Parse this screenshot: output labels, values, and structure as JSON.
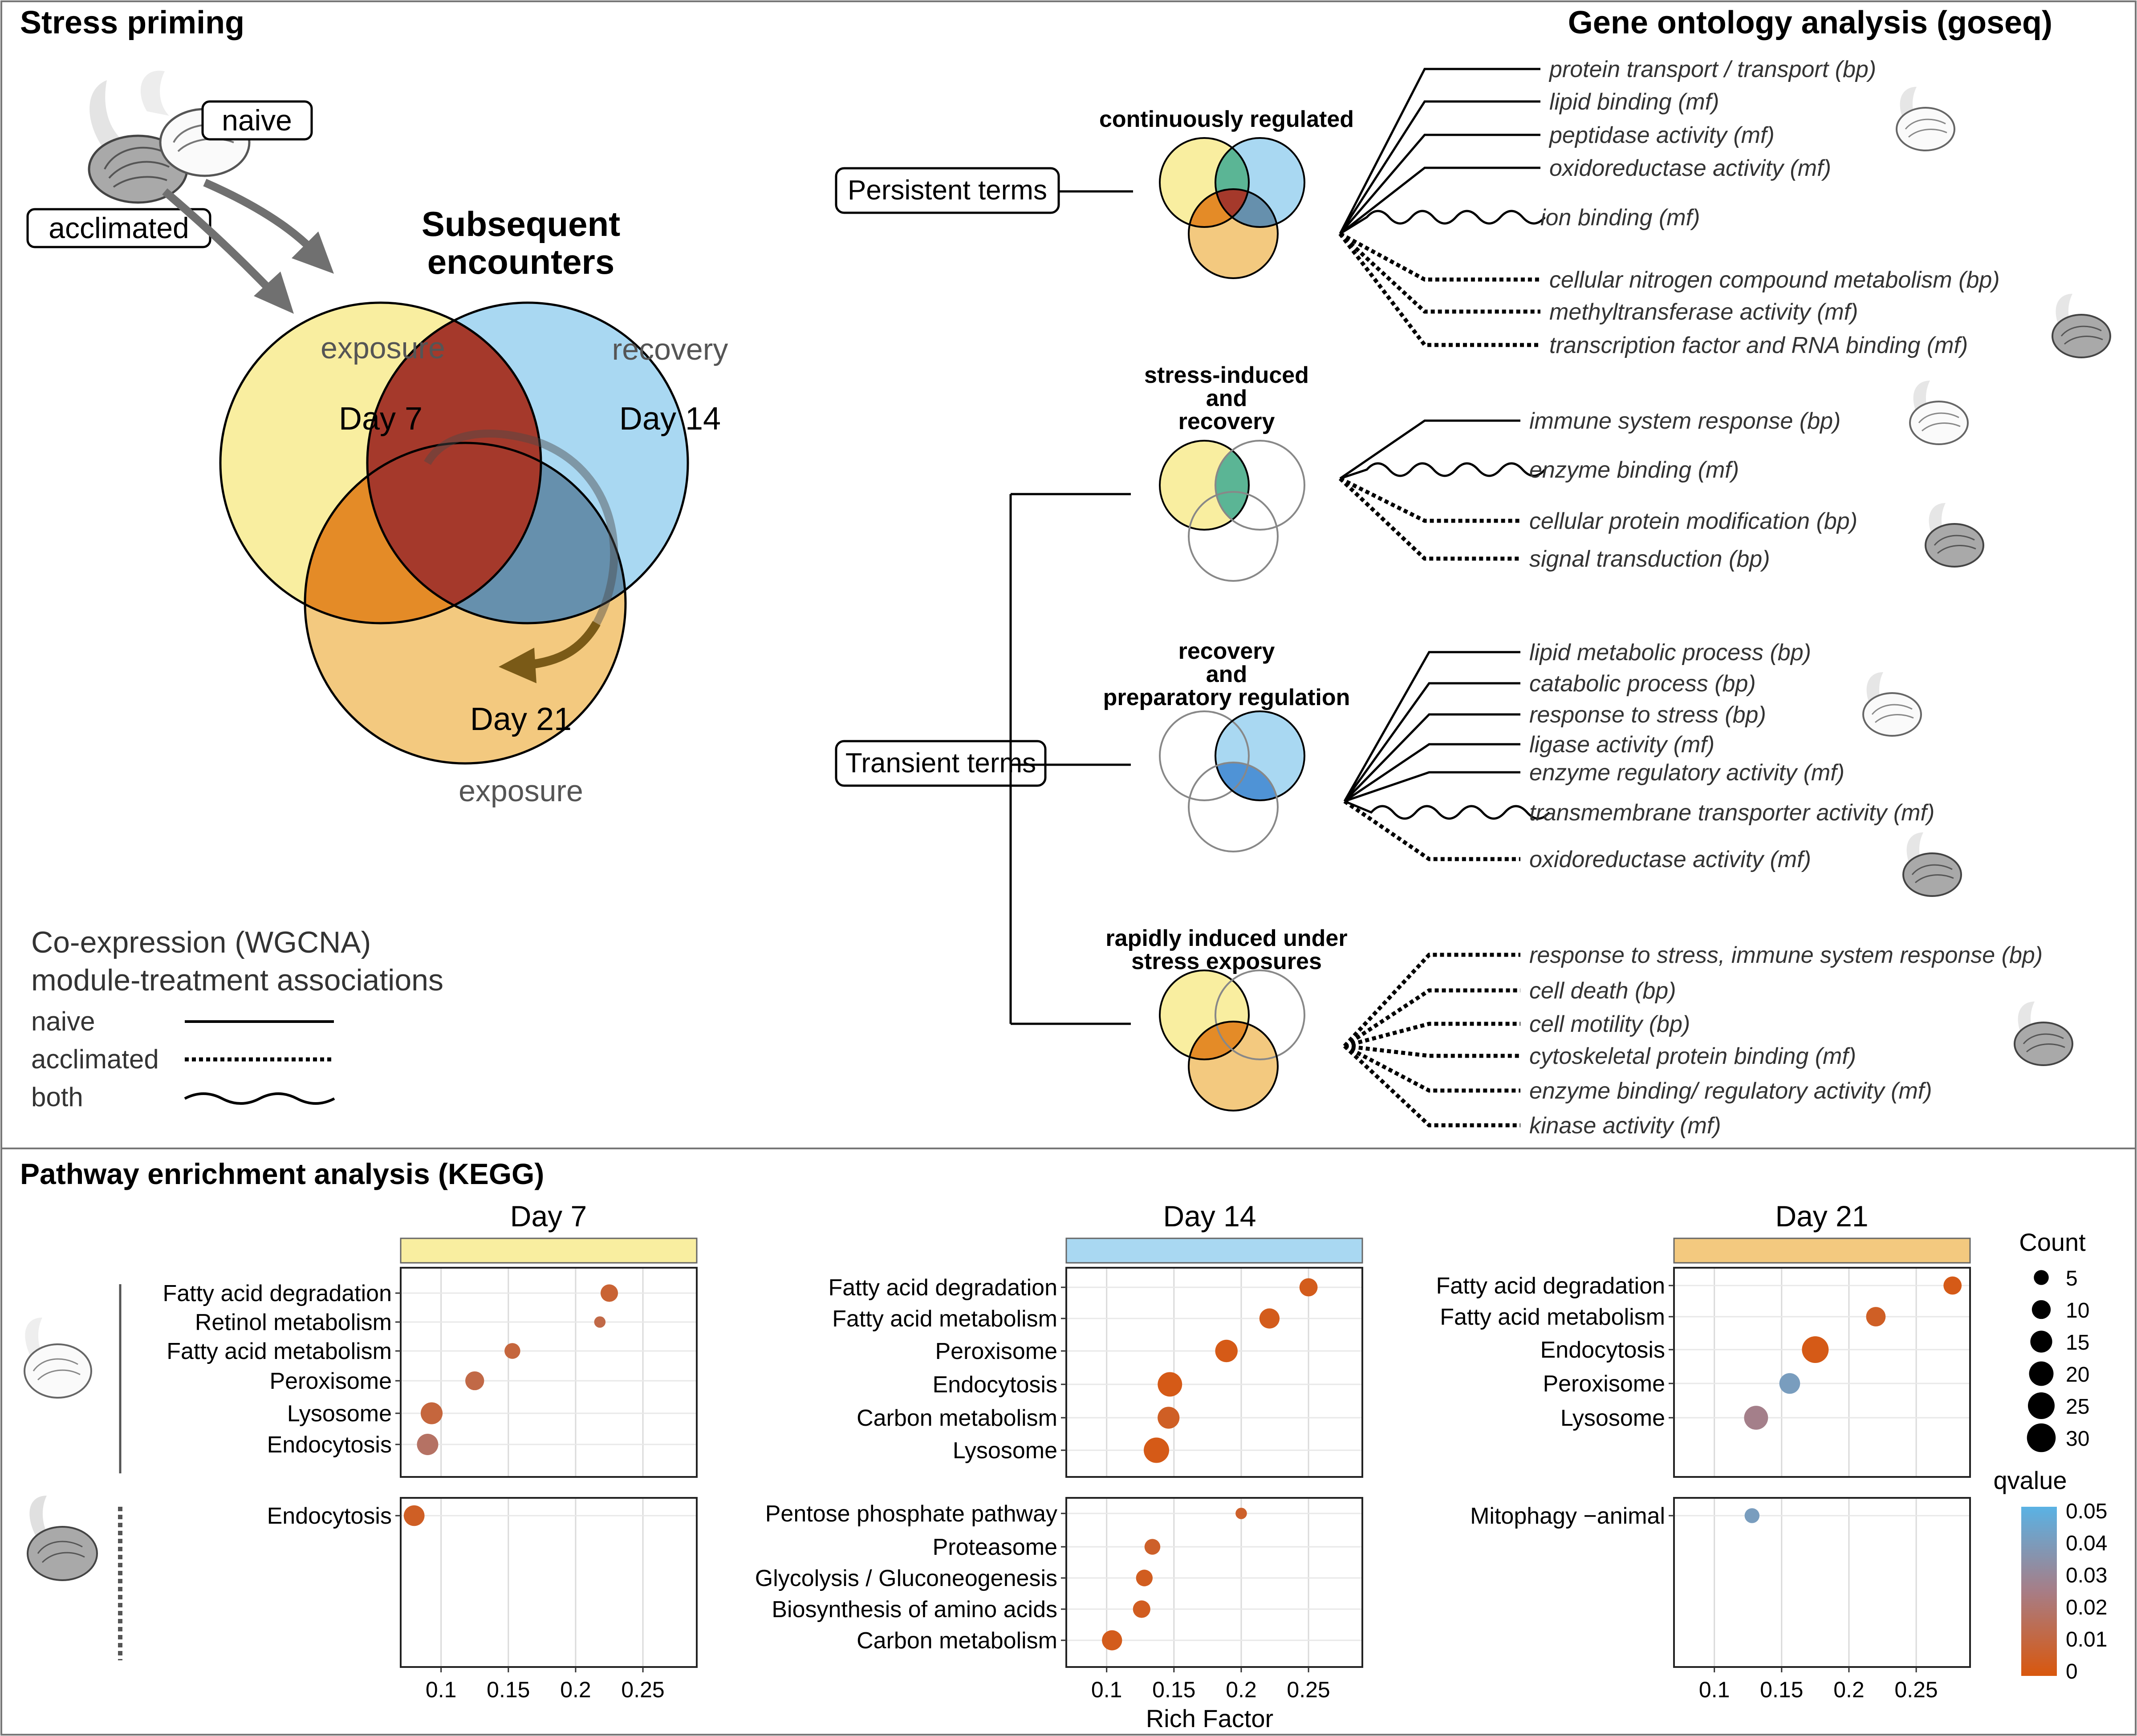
{
  "stress_priming": {
    "title": "Stress priming",
    "naive_label": "naive",
    "acclimated_label": "acclimated",
    "subsequent_line1": "Subsequent",
    "subsequent_line2": "encounters",
    "circles": [
      {
        "top_label": "exposure",
        "day": "Day 7",
        "color": "#f9eea0"
      },
      {
        "top_label": "recovery",
        "day": "Day 14",
        "color": "#a9d8f2"
      },
      {
        "top_label": "exposure",
        "day": "Day 21",
        "color": "#f3c97f"
      }
    ]
  },
  "legend_wgcna": {
    "title_line1": "Co-expression (WGCNA)",
    "title_line2": "module-treatment associations",
    "items": [
      "naive",
      "acclimated",
      "both"
    ]
  },
  "gene_ontology": {
    "title": "Gene ontology analysis (goseq)",
    "persistent_label": "Persistent terms",
    "transient_label": "Transient terms",
    "groups": [
      {
        "heading": [
          "continuously regulated"
        ],
        "terms": [
          "protein transport / transport (bp)",
          "lipid binding (mf)",
          "peptidase activity (mf)",
          "oxidoreductase activity (mf)",
          "ion binding (mf)",
          "cellular nitrogen compound metabolism (bp)",
          "methyltransferase activity (mf)",
          "transcription factor and RNA binding (mf)"
        ]
      },
      {
        "heading": [
          "stress-induced",
          "and",
          "recovery"
        ],
        "terms": [
          "immune system response (bp)",
          "enzyme binding (mf)",
          "cellular protein modification (bp)",
          "signal transduction (bp)"
        ]
      },
      {
        "heading": [
          "recovery",
          "and",
          "preparatory regulation"
        ],
        "terms": [
          "lipid metabolic process (bp)",
          "catabolic process (bp)",
          "response to stress (bp)",
          "ligase activity (mf)",
          "enzyme regulatory activity (mf)",
          "transmembrane transporter activity (mf)",
          "oxidoreductase activity (mf)"
        ]
      },
      {
        "heading": [
          "rapidly induced under",
          "stress exposures"
        ],
        "terms": [
          "response to stress, immune system response (bp)",
          "cell death (bp)",
          "cell motility (bp)",
          "cytoskeletal protein binding (mf)",
          "enzyme binding/ regulatory activity (mf)",
          "kinase activity (mf)"
        ]
      }
    ]
  },
  "kegg": {
    "title": "Pathway enrichment analysis (KEGG)",
    "x_ticks": [
      0.1,
      0.15,
      0.2,
      0.25
    ],
    "x_tick_labels": [
      "0.1",
      "0.15",
      "0.2",
      "0.25"
    ],
    "xlabel": "Rich Factor",
    "count_legend": {
      "title": "Count",
      "values": [
        5,
        10,
        15,
        20,
        25,
        30
      ]
    },
    "qvalue_legend": {
      "title": "qvalue",
      "ticks": [
        "0.05",
        "0.04",
        "0.03",
        "0.02",
        "0.01",
        "0"
      ]
    },
    "colors": {
      "low_q": "#d9570d",
      "mid_q": "#a77d86",
      "high_q": "#5ab2e4",
      "day7": "#f9eea0",
      "day14": "#a9d8f2",
      "day21": "#f3c97f"
    }
  },
  "chart_data": [
    {
      "type": "scatter",
      "title": "Day 7",
      "facet": "naive",
      "xlim": [
        0.07,
        0.29
      ],
      "points": [
        {
          "label": "Fatty acid degradation",
          "x": 0.225,
          "count": 8,
          "q": 0.008
        },
        {
          "label": "Retinol metabolism",
          "x": 0.218,
          "count": 2,
          "q": 0.012
        },
        {
          "label": "Fatty acid metabolism",
          "x": 0.153,
          "count": 6,
          "q": 0.01
        },
        {
          "label": "Peroxisome",
          "x": 0.125,
          "count": 10,
          "q": 0.012
        },
        {
          "label": "Lysosome",
          "x": 0.093,
          "count": 15,
          "q": 0.01
        },
        {
          "label": "Endocytosis",
          "x": 0.09,
          "count": 14,
          "q": 0.018
        }
      ]
    },
    {
      "type": "scatter",
      "title": "Day 7",
      "facet": "acclimated",
      "xlim": [
        0.07,
        0.29
      ],
      "points": [
        {
          "label": "Endocytosis",
          "x": 0.08,
          "count": 13,
          "q": 0.005
        }
      ]
    },
    {
      "type": "scatter",
      "title": "Day 14",
      "facet": "naive",
      "xlim": [
        0.07,
        0.29
      ],
      "points": [
        {
          "label": "Fatty acid degradation",
          "x": 0.25,
          "count": 9,
          "q": 0.003
        },
        {
          "label": "Fatty acid metabolism",
          "x": 0.221,
          "count": 12,
          "q": 0.003
        },
        {
          "label": "Peroxisome",
          "x": 0.189,
          "count": 16,
          "q": 0.002
        },
        {
          "label": "Endocytosis",
          "x": 0.147,
          "count": 20,
          "q": 0.002
        },
        {
          "label": "Carbon metabolism",
          "x": 0.146,
          "count": 15,
          "q": 0.005
        },
        {
          "label": "Lysosome",
          "x": 0.137,
          "count": 22,
          "q": 0.002
        }
      ]
    },
    {
      "type": "scatter",
      "title": "Day 14",
      "facet": "acclimated",
      "xlim": [
        0.07,
        0.29
      ],
      "points": [
        {
          "label": "Pentose phosphate pathway",
          "x": 0.2,
          "count": 2,
          "q": 0.006
        },
        {
          "label": "Proteasome",
          "x": 0.134,
          "count": 6,
          "q": 0.006
        },
        {
          "label": "Glycolysis / Gluconeogenesis",
          "x": 0.128,
          "count": 7,
          "q": 0.004
        },
        {
          "label": "Biosynthesis of amino acids",
          "x": 0.126,
          "count": 8,
          "q": 0.004
        },
        {
          "label": "Carbon metabolism",
          "x": 0.104,
          "count": 12,
          "q": 0.003
        }
      ]
    },
    {
      "type": "scatter",
      "title": "Day 21",
      "facet": "naive",
      "xlim": [
        0.07,
        0.29
      ],
      "points": [
        {
          "label": "Fatty acid degradation",
          "x": 0.277,
          "count": 9,
          "q": 0.002
        },
        {
          "label": "Fatty acid metabolism",
          "x": 0.22,
          "count": 11,
          "q": 0.005
        },
        {
          "label": "Endocytosis",
          "x": 0.175,
          "count": 25,
          "q": 0.002
        },
        {
          "label": "Peroxisome",
          "x": 0.156,
          "count": 13,
          "q": 0.04
        },
        {
          "label": "Lysosome",
          "x": 0.131,
          "count": 19,
          "q": 0.026
        }
      ]
    },
    {
      "type": "scatter",
      "title": "Day 21",
      "facet": "acclimated",
      "xlim": [
        0.07,
        0.29
      ],
      "points": [
        {
          "label": "Mitophagy −animal",
          "x": 0.128,
          "count": 5,
          "q": 0.04
        }
      ]
    }
  ]
}
